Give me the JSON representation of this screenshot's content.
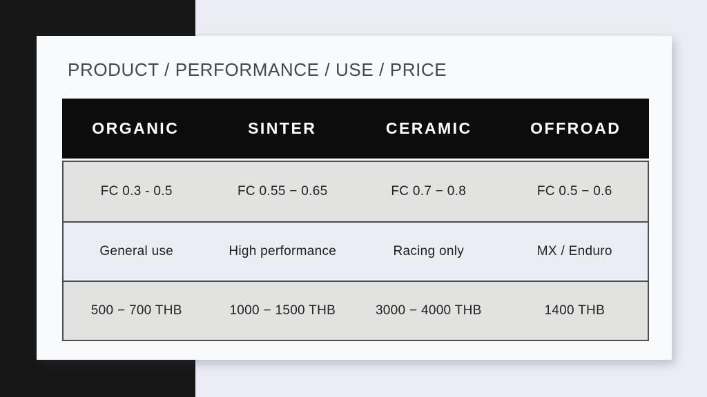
{
  "slide": {
    "title": "PRODUCT / PERFORMANCE / USE / PRICE"
  },
  "table": {
    "columns": [
      "ORGANIC",
      "SINTER",
      "CERAMIC",
      "OFFROAD"
    ],
    "rows": [
      {
        "name": "friction-coefficient",
        "cells": [
          "FC 0.3 - 0.5",
          "FC 0.55 − 0.65",
          "FC 0.7 − 0.8",
          "FC 0.5 − 0.6"
        ]
      },
      {
        "name": "use",
        "cells": [
          "General use",
          "High performance",
          "Racing only",
          "MX / Enduro"
        ]
      },
      {
        "name": "price",
        "cells": [
          "500 − 700 THB",
          "1000 − 1500 THB",
          "3000 − 4000 THB",
          "1400 THB"
        ]
      }
    ]
  },
  "colors": {
    "page_background": "#ecedf4",
    "accent_band": "#171717",
    "card_background": "#f9fafc",
    "table_header_background": "#0c0c0c",
    "table_header_text": "#ffffff",
    "row_gray": "#e2e2e0",
    "row_lavender": "#ebedf4",
    "table_border": "#4c4c51",
    "title_text": "#47474b",
    "body_text": "#212125"
  }
}
